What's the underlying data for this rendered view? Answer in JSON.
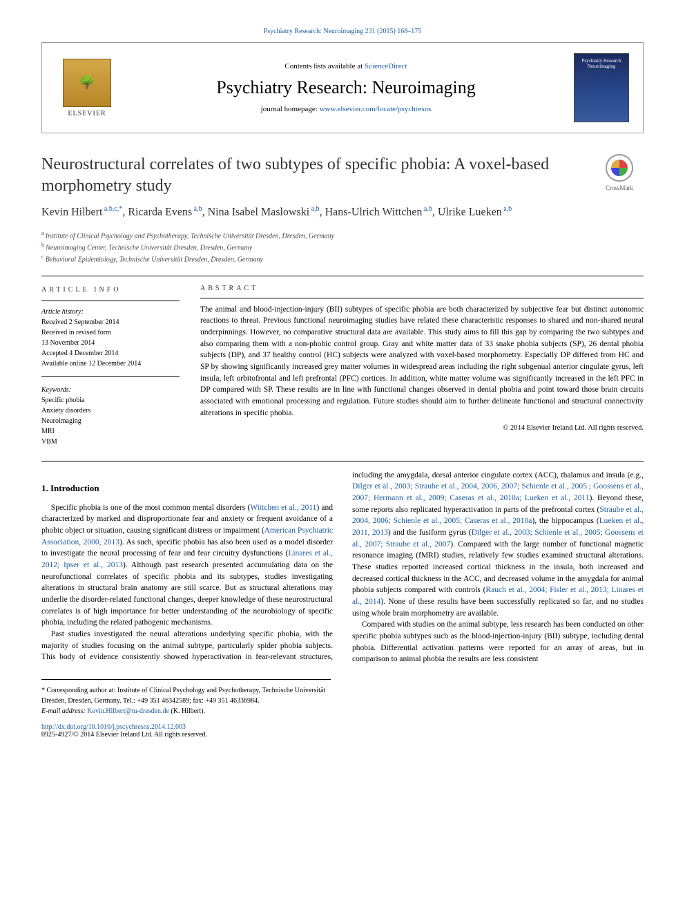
{
  "top_citation": "Psychiatry Research: Neuroimaging 231 (2015) 168–175",
  "header": {
    "contents_prefix": "Contents lists available at ",
    "contents_link": "ScienceDirect",
    "journal": "Psychiatry Research: Neuroimaging",
    "homepage_prefix": "journal homepage: ",
    "homepage_url": "www.elsevier.com/locate/psychresns",
    "elsevier": "ELSEVIER",
    "cover_text": "Psychiatry Research Neuroimaging"
  },
  "article": {
    "title": "Neurostructural correlates of two subtypes of specific phobia: A voxel-based morphometry study",
    "crossmark": "CrossMark",
    "authors_html": "Kevin Hilbert<sup> a,b,c,*</sup>, Ricarda Evens<sup> a,b</sup>, Nina Isabel Maslowski<sup> a,b</sup>, Hans-Ulrich Wittchen<sup> a,b</sup>, Ulrike Lueken<sup> a,b</sup>",
    "affiliations": {
      "a": "Institute of Clinical Psychology and Psychotherapy, Technische Universität Dresden, Dresden, Germany",
      "b": "Neuroimaging Center, Technische Universität Dresden, Dresden, Germany",
      "c": "Behavioral Epidemiology, Technische Universität Dresden, Dresden, Germany"
    }
  },
  "info": {
    "heading": "ARTICLE INFO",
    "history_label": "Article history:",
    "history": [
      "Received 2 September 2014",
      "Received in revised form",
      "13 November 2014",
      "Accepted 4 December 2014",
      "Available online 12 December 2014"
    ],
    "keywords_label": "Keywords:",
    "keywords": [
      "Specific phobia",
      "Anxiety disorders",
      "Neuroimaging",
      "MRI",
      "VBM"
    ]
  },
  "abstract": {
    "heading": "ABSTRACT",
    "text": "The animal and blood-injection-injury (BII) subtypes of specific phobia are both characterized by subjective fear but distinct autonomic reactions to threat. Previous functional neuroimaging studies have related these characteristic responses to shared and non-shared neural underpinnings. However, no comparative structural data are available. This study aims to fill this gap by comparing the two subtypes and also comparing them with a non-phobic control group. Gray and white matter data of 33 snake phobia subjects (SP), 26 dental phobia subjects (DP), and 37 healthy control (HC) subjects were analyzed with voxel-based morphometry. Especially DP differed from HC and SP by showing significantly increased grey matter volumes in widespread areas including the right subgenual anterior cingulate gyrus, left insula, left orbitofrontal and left prefrontal (PFC) cortices. In addition, white matter volume was significantly increased in the left PFC in DP compared with SP. These results are in line with functional changes observed in dental phobia and point toward those brain circuits associated with emotional processing and regulation. Future studies should aim to further delineate functional and structural connectivity alterations in specific phobia.",
    "copyright": "© 2014 Elsevier Ireland Ltd. All rights reserved."
  },
  "body": {
    "section1_heading": "1.  Introduction",
    "p1a": "Specific phobia is one of the most common mental disorders (",
    "p1_ref1": "Wittchen et al., 2011",
    "p1b": ") and characterized by marked and disproportionate fear and anxiety or frequent avoidance of a phobic object or situation, causing significant distress or impairment (",
    "p1_ref2": "American Psychiatric Association, 2000, 2013",
    "p1c": "). As such, specific phobia has also been used as a model disorder to investigate the neural processing of fear and fear circuitry dysfunctions (",
    "p1_ref3": "Linares et al., 2012; Ipser et al., 2013",
    "p1d": "). Although past research presented accumulating data on the neurofunctional correlates of specific phobia and its subtypes, studies investigating alterations in structural brain anatomy are still scarce. But as structural alterations may underlie the disorder-related functional changes, deeper knowledge of these neurostructural correlates is of high importance for better understanding of the neurobiology of specific phobia, including the related pathogenic mechanisms.",
    "p2": "Past studies investigated the neural alterations underlying specific phobia, with the majority of studies focusing on the animal ",
    "p3a": "subtype, particularly spider phobia subjects. This body of evidence consistently showed hyperactivation in fear-relevant structures, including the amygdala, dorsal anterior cingulate cortex (ACC), thalamus and insula (e.g., ",
    "p3_ref1": "Dilger et al., 2003; Straube et al., 2004, 2006, 2007; Schienle et al., 2005.; Goossens et al., 2007; Hermann et al., 2009; Caseras et al., 2010a; Lueken et al., 2011",
    "p3b": "). Beyond these, some reports also replicated hyperactivation in parts of the prefrontal cortex (",
    "p3_ref2": "Straube et al., 2004, 2006; Schienle et al., 2005; Caseras et al., 2010a",
    "p3c": "), the hippocampus (",
    "p3_ref3": "Lueken et al., 2011, 2013",
    "p3d": ") and the fusiform gyrus (",
    "p3_ref4": "Dilger et al., 2003; Schienle et al., 2005; Goossens et al., 2007; Straube et al., 2007",
    "p3e": "). Compared with the large number of functional magnetic resonance imaging (fMRI) studies, relatively few studies examined structural alterations. These studies reported increased cortical thickness in the insula, both increased and decreased cortical thickness in the ACC, and decreased volume in the amygdala for animal phobia subjects compared with controls (",
    "p3_ref5": "Rauch et al., 2004; Fisler et al., 2013; Linares et al., 2014",
    "p3f": "). None of these results have been successfully replicated so far, and no studies using whole brain morphometry are available.",
    "p4": "Compared with studies on the animal subtype, less research has been conducted on other specific phobia subtypes such as the blood-injection-injury (BII) subtype, including dental phobia. Differential activation patterns were reported for an array of areas, but in comparison to animal phobia the results are less consistent"
  },
  "footer": {
    "corr_label": "* Corresponding author at: Institute of Clinical Psychology and Psychotherapy, Technische Universität Dresden, Dresden, Germany. Tel.: +49 351 46342589; fax: +49 351 46336984.",
    "email_label": "E-mail address: ",
    "email": "Kevin.Hilbert@tu-dresden.de",
    "email_suffix": " (K. Hilbert).",
    "doi": "http://dx.doi.org/10.1016/j.pscychresns.2014.12.003",
    "issn": "0925-4927/© 2014 Elsevier Ireland Ltd. All rights reserved."
  },
  "colors": {
    "link": "#1a5b9e",
    "text": "#000000",
    "muted": "#444444"
  }
}
